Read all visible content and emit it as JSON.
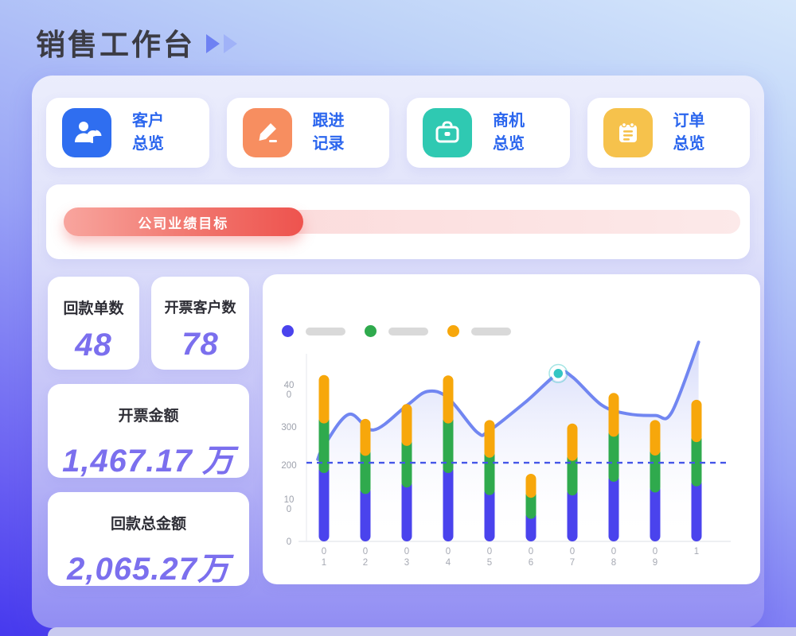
{
  "page": {
    "title": "销售工作台"
  },
  "nav_cards": [
    {
      "label": "客户\n总览",
      "tile_color": "#2f6ef0",
      "icon": "customer-overview-icon"
    },
    {
      "label": "跟进\n记录",
      "tile_color": "#f78e60",
      "icon": "follow-up-record-icon"
    },
    {
      "label": "商机\n总览",
      "tile_color": "#2fc9b2",
      "icon": "opportunity-overview-icon"
    },
    {
      "label": "订单\n总览",
      "tile_color": "#f6c24c",
      "icon": "order-overview-icon"
    }
  ],
  "target_bar": {
    "label": "公司业绩目标",
    "progress_pct": 34,
    "track_from": "#fbd6d6",
    "track_to": "#fce9e9",
    "fill_from": "#f8a59e",
    "fill_mid": "#f1756d",
    "fill_to": "#ee534e"
  },
  "stats": [
    {
      "label": "回款单数",
      "value": "48"
    },
    {
      "label": "开票客户数",
      "value": "78"
    },
    {
      "label": "开票金额",
      "value": "1,467.17 万"
    },
    {
      "label": "回款总金额",
      "value": "2,065.27万"
    }
  ],
  "chart_data": {
    "type": "bar+line (stacked bars with smoothed area line overlay)",
    "categories": [
      "01",
      "02",
      "03",
      "04",
      "05",
      "06",
      "07",
      "08",
      "09",
      "1"
    ],
    "x_labels_display": [
      "0\n1",
      "0\n2",
      "0\n3",
      "0\n4",
      "0\n5",
      "0\n6",
      "0\n7",
      "0\n8",
      "0\n9",
      "1"
    ],
    "ylim": [
      0,
      500
    ],
    "yticks": [
      {
        "v": 0,
        "label": "0"
      },
      {
        "v": 100,
        "label": "10\n0"
      },
      {
        "v": 200,
        "label": "200"
      },
      {
        "v": 300,
        "label": "300"
      },
      {
        "v": 400,
        "label": "40\n0"
      }
    ],
    "grid": false,
    "legend_position": "top-left",
    "legend": [
      {
        "color": "#4a43ed",
        "label": "",
        "placeholder_pill": true
      },
      {
        "color": "#2faa4d",
        "label": "",
        "placeholder_pill": true
      },
      {
        "color": "#f7a70b",
        "label": "",
        "placeholder_pill": true
      }
    ],
    "series": [
      {
        "name": "blue-segment",
        "color": "#4a43ed",
        "values": [
          200,
          145,
          162,
          200,
          142,
          80,
          141,
          177,
          149,
          165
        ]
      },
      {
        "name": "green-segment",
        "color": "#2faa4d",
        "values": [
          130,
          100,
          109,
          130,
          98,
          55,
          91,
          118,
          97,
          116
        ]
      },
      {
        "name": "orange-segment",
        "color": "#f7a70b",
        "values": [
          106,
          76,
          89,
          105,
          78,
          42,
          77,
          94,
          72,
          90
        ]
      }
    ],
    "stack_totals": [
      436,
      321,
      360,
      435,
      318,
      177,
      309,
      389,
      318,
      371
    ],
    "line": {
      "color": "#7186f1",
      "area_fill_from": "#98a4f2",
      "smooth": true,
      "points": [
        [
          0.85,
          215
        ],
        [
          1,
          250
        ],
        [
          1.6,
          333
        ],
        [
          2.2,
          292
        ],
        [
          3,
          356
        ],
        [
          3.5,
          393
        ],
        [
          4,
          376
        ],
        [
          4.7,
          286
        ],
        [
          5,
          291
        ],
        [
          5.9,
          368
        ],
        [
          6.66,
          440
        ],
        [
          7,
          431
        ],
        [
          7.7,
          358
        ],
        [
          8.3,
          335
        ],
        [
          9,
          330
        ],
        [
          9.4,
          338
        ],
        [
          10.05,
          522
        ]
      ]
    },
    "highlight_point": {
      "x": 6.66,
      "value": 440,
      "color": "#35c6c3"
    },
    "reference_line": {
      "value": 206,
      "color": "#4456e8",
      "style": "dashed"
    }
  }
}
